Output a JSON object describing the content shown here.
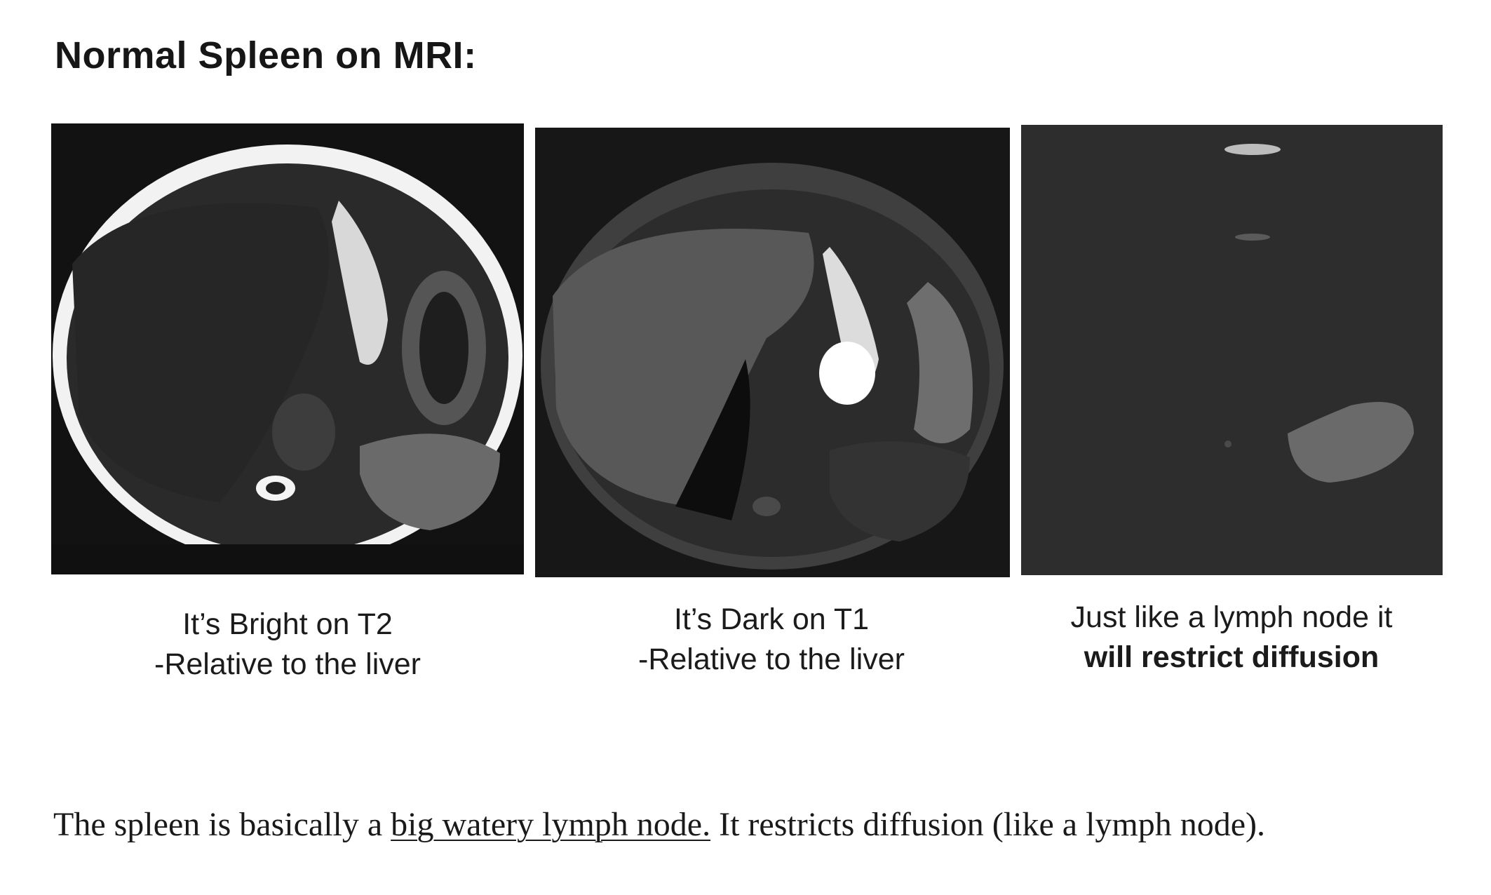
{
  "heading": "Normal Spleen on MRI:",
  "panels": [
    {
      "caption_line1": "It’s Bright on T2",
      "caption_line2": "-Relative to the liver"
    },
    {
      "caption_line1": "It’s Dark on T1",
      "caption_line2": "-Relative to the liver"
    },
    {
      "caption_line1": "Just like a lymph node it",
      "caption_line2": "will restrict diffusion"
    }
  ],
  "footnote": {
    "before": "The spleen is basically a ",
    "underlined": "big watery lymph node.",
    "after": " It restricts diffusion (like a lymph node)."
  }
}
